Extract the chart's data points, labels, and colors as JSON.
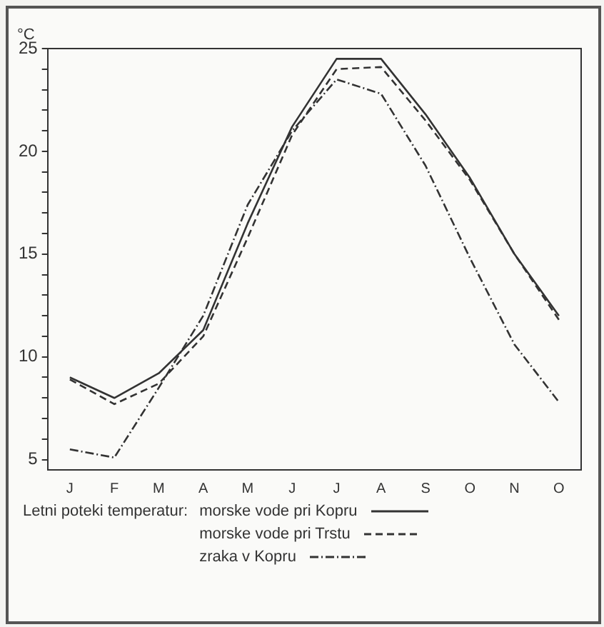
{
  "chart_data": {
    "type": "line",
    "ylabel": "°C",
    "legend_title": "Letni poteki temperatur:",
    "legend": "bottom",
    "grid": false,
    "marker": "none",
    "categories": [
      "J",
      "F",
      "M",
      "A",
      "M",
      "J",
      "J",
      "A",
      "S",
      "O",
      "N",
      "O"
    ],
    "ylim": [
      4.5,
      25
    ],
    "yticks": [
      5,
      {
        "value": 6,
        "label": null
      },
      {
        "value": 7,
        "label": null
      },
      {
        "value": 8,
        "label": null
      },
      {
        "value": 9,
        "label": null
      },
      10,
      {
        "value": 11,
        "label": null
      },
      {
        "value": 12,
        "label": null
      },
      {
        "value": 13,
        "label": null
      },
      {
        "value": 14,
        "label": null
      },
      15,
      {
        "value": 16,
        "label": null
      },
      {
        "value": 17,
        "label": null
      },
      {
        "value": 18,
        "label": null
      },
      {
        "value": 19,
        "label": null
      },
      20,
      {
        "value": 21,
        "label": null
      },
      {
        "value": 22,
        "label": null
      },
      {
        "value": 23,
        "label": null
      },
      {
        "value": 24,
        "label": null
      },
      25
    ],
    "series": [
      {
        "name": "morske vode pri Kopru",
        "color": "#333333",
        "line_style": "solid",
        "values": [
          9.0,
          8.0,
          9.2,
          11.3,
          16.5,
          21.2,
          24.5,
          24.5,
          21.8,
          18.7,
          15.0,
          12.0
        ]
      },
      {
        "name": "morske vode pri Trstu",
        "color": "#333333",
        "line_style": "dashed",
        "values": [
          8.9,
          7.7,
          8.7,
          11.0,
          15.8,
          20.8,
          24.0,
          24.1,
          21.5,
          18.6,
          15.0,
          11.8
        ]
      },
      {
        "name": "zraka v Kopru",
        "color": "#333333",
        "line_style": "dashdot",
        "values": [
          5.5,
          5.1,
          8.5,
          12.0,
          17.4,
          21.0,
          23.5,
          22.8,
          19.3,
          14.8,
          10.6,
          7.8
        ]
      }
    ]
  }
}
